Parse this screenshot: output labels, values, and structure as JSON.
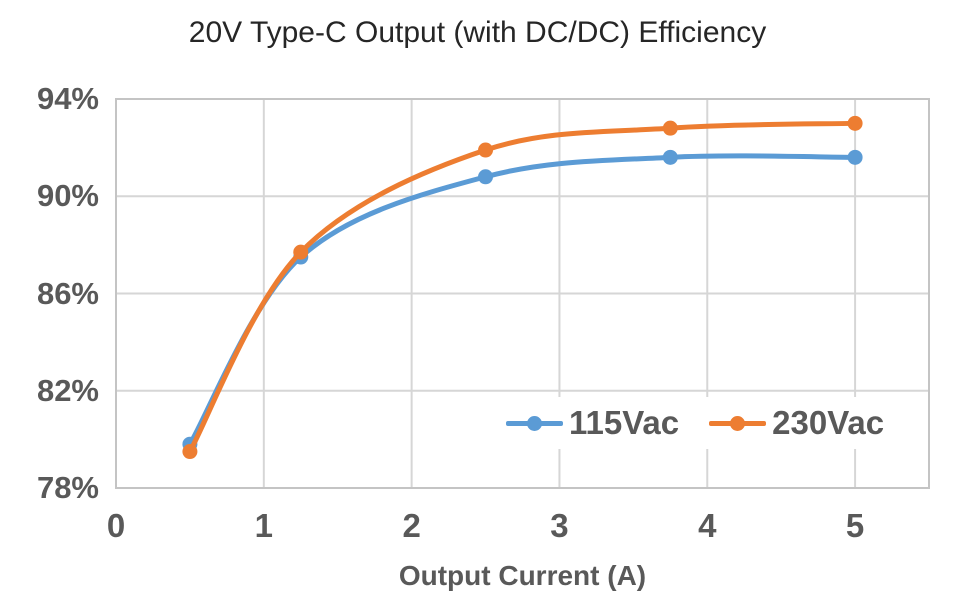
{
  "chart_data": {
    "type": "line",
    "title": "20V Type-C Output (with DC/DC) Efficiency",
    "xlabel": "Output Current (A)",
    "ylabel": "",
    "x": [
      0.5,
      1.25,
      2.5,
      3.75,
      5
    ],
    "series": [
      {
        "name": "115Vac",
        "color": "#5B9BD5",
        "values": [
          79.8,
          87.5,
          90.8,
          91.6,
          91.6
        ]
      },
      {
        "name": "230Vac",
        "color": "#ED7D31",
        "values": [
          79.5,
          87.7,
          91.9,
          92.8,
          93.0
        ]
      }
    ],
    "xlim": [
      0,
      5.5
    ],
    "ylim": [
      78,
      94
    ],
    "x_ticks": [
      0,
      1,
      2,
      3,
      4,
      5
    ],
    "x_tick_labels": [
      "0",
      "1",
      "2",
      "3",
      "4",
      "5"
    ],
    "y_ticks": [
      94,
      90,
      86,
      82,
      78
    ],
    "y_tick_labels": [
      "94%",
      "90%",
      "86%",
      "82%",
      "78%"
    ],
    "grid": true,
    "smooth": true,
    "legend_position": "inside-bottom-right",
    "colors": {
      "grid_line": "#D6D6D6",
      "plot_border": "#C4C4C4",
      "tick_text": "#595959",
      "title_text": "#262626"
    }
  }
}
